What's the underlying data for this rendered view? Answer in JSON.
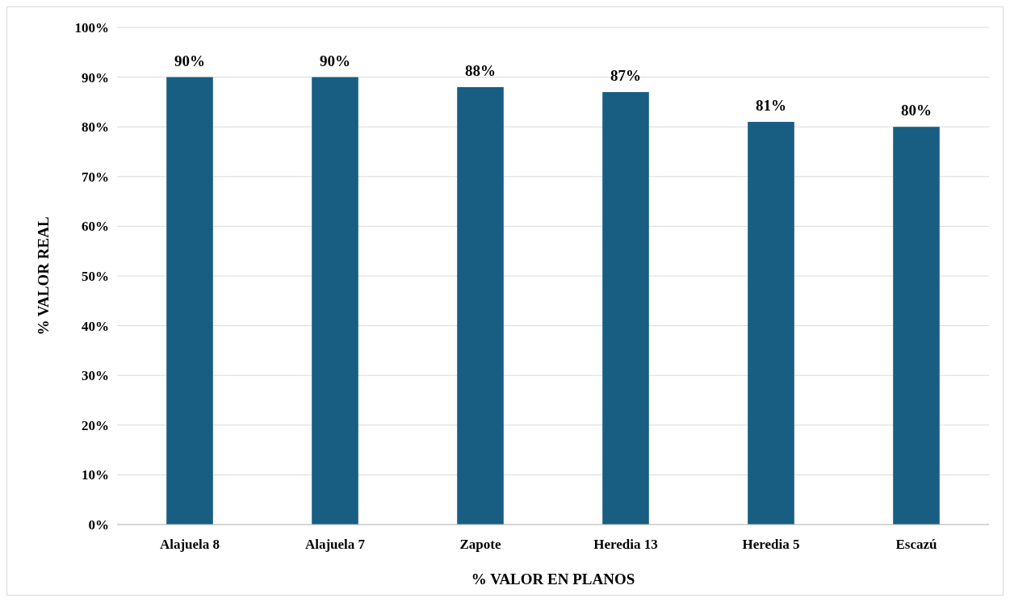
{
  "chart_data": {
    "type": "bar",
    "xlabel": "% VALOR EN PLANOS",
    "ylabel": "% VALOR REAL",
    "categories": [
      "Alajuela 8",
      "Alajuela 7",
      "Zapote",
      "Heredia 13",
      "Heredia 5",
      "Escazú"
    ],
    "values": [
      90,
      90,
      88,
      87,
      81,
      80
    ],
    "color": "#175e82",
    "value_labels": [
      "90%",
      "90%",
      "88%",
      "87%",
      "81%",
      "80%"
    ],
    "ylim": [
      0,
      100
    ],
    "yticks": [
      {
        "value": 0,
        "label": "0%"
      },
      {
        "value": 10,
        "label": "10%"
      },
      {
        "value": 20,
        "label": "20%"
      },
      {
        "value": 30,
        "label": "30%"
      },
      {
        "value": 40,
        "label": "40%"
      },
      {
        "value": 50,
        "label": "50%"
      },
      {
        "value": 60,
        "label": "60%"
      },
      {
        "value": 70,
        "label": "70%"
      },
      {
        "value": 80,
        "label": "80%"
      },
      {
        "value": 90,
        "label": "90%"
      },
      {
        "value": 100,
        "label": "100%"
      }
    ],
    "grid": "y"
  }
}
